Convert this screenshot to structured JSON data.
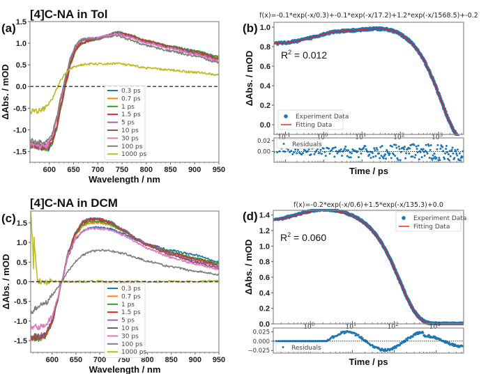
{
  "chart_data": [
    {
      "id": "a",
      "type": "line",
      "panel_label": "(a)",
      "title": "[4]C-NA in Tol",
      "xlabel": "Wavelength / nm",
      "ylabel": "ΔAbs. / mOD",
      "xlim": [
        560,
        950
      ],
      "ylim": [
        -1.75,
        1.5
      ],
      "xticks": [
        600,
        650,
        700,
        750,
        800,
        850,
        900,
        950
      ],
      "yticks": [
        -1.5,
        -1.0,
        -0.5,
        0.0,
        0.5,
        1.0,
        1.5
      ],
      "ytick_labels": [
        "-1.5",
        "-1.0",
        "-0.5",
        "0.0",
        "0.5",
        "1.0",
        "1.5"
      ],
      "zero_line": "dashed",
      "legend": {
        "placement": "lower-center"
      },
      "x": [
        565,
        580,
        595,
        605,
        615,
        625,
        635,
        645,
        655,
        665,
        680,
        700,
        720,
        740,
        760,
        800,
        850,
        900,
        950
      ],
      "series": [
        {
          "name": "0.3 ps",
          "color": "#1f77b4",
          "values": [
            -1.35,
            -1.4,
            -1.45,
            -1.35,
            -1.0,
            -0.45,
            0.1,
            0.55,
            0.85,
            0.98,
            1.05,
            1.1,
            1.18,
            1.25,
            1.2,
            1.05,
            0.92,
            0.82,
            0.68
          ]
        },
        {
          "name": "0.7 ps",
          "color": "#ff7f0e",
          "values": [
            -1.35,
            -1.4,
            -1.45,
            -1.35,
            -0.98,
            -0.43,
            0.1,
            0.55,
            0.85,
            0.98,
            1.05,
            1.1,
            1.18,
            1.25,
            1.2,
            1.05,
            0.92,
            0.82,
            0.67
          ]
        },
        {
          "name": "1 ps",
          "color": "#2ca02c",
          "values": [
            -1.35,
            -1.4,
            -1.45,
            -1.33,
            -0.97,
            -0.42,
            0.11,
            0.56,
            0.86,
            0.99,
            1.05,
            1.1,
            1.18,
            1.26,
            1.21,
            1.06,
            0.93,
            0.82,
            0.68
          ]
        },
        {
          "name": "1.5 ps",
          "color": "#d62728",
          "values": [
            -1.35,
            -1.4,
            -1.43,
            -1.3,
            -0.93,
            -0.38,
            0.13,
            0.58,
            0.87,
            0.99,
            1.05,
            1.1,
            1.18,
            1.25,
            1.2,
            1.05,
            0.92,
            0.8,
            0.65
          ]
        },
        {
          "name": "5 ps",
          "color": "#9467bd",
          "values": [
            -1.35,
            -1.38,
            -1.38,
            -1.22,
            -0.8,
            -0.28,
            0.22,
            0.65,
            0.92,
            1.05,
            1.1,
            1.12,
            1.18,
            1.24,
            1.18,
            1.03,
            0.9,
            0.78,
            0.62
          ]
        },
        {
          "name": "10 ps",
          "color": "#8c564b",
          "values": [
            -1.35,
            -1.38,
            -1.36,
            -1.2,
            -0.77,
            -0.25,
            0.24,
            0.67,
            0.93,
            1.06,
            1.1,
            1.12,
            1.18,
            1.23,
            1.18,
            1.03,
            0.9,
            0.77,
            0.61
          ]
        },
        {
          "name": "30 ps",
          "color": "#e377c2",
          "values": [
            -1.35,
            -1.38,
            -1.35,
            -1.18,
            -0.75,
            -0.22,
            0.27,
            0.7,
            0.95,
            1.08,
            1.12,
            1.12,
            1.18,
            1.22,
            1.16,
            1.01,
            0.88,
            0.75,
            0.59
          ]
        },
        {
          "name": "100 ps",
          "color": "#7f7f7f",
          "values": [
            -1.25,
            -1.3,
            -1.3,
            -1.12,
            -0.7,
            -0.18,
            0.3,
            0.72,
            0.97,
            1.08,
            1.1,
            1.1,
            1.15,
            1.18,
            1.1,
            0.95,
            0.82,
            0.7,
            0.55
          ]
        },
        {
          "name": "1000 ps",
          "color": "#bcbd22",
          "values": [
            -0.55,
            -0.55,
            -0.45,
            -0.3,
            -0.05,
            0.18,
            0.32,
            0.42,
            0.47,
            0.5,
            0.52,
            0.52,
            0.52,
            0.54,
            0.5,
            0.43,
            0.38,
            0.33,
            0.27
          ]
        }
      ]
    },
    {
      "id": "b",
      "type": "scatter",
      "panel_label": "(b)",
      "title": "f(x)=-0.1*exp(-x/0.3)+-0.1*exp(-x/17.2)+1.2*exp(-x/1568.5)+-0.2",
      "fit": {
        "terms": [
          {
            "A": -0.1,
            "tau": 0.3
          },
          {
            "A": -0.1,
            "tau": 17.2
          },
          {
            "A": 1.2,
            "tau": 1568.5
          }
        ],
        "offset": -0.2
      },
      "r2_label": "R",
      "r2_sup": "2",
      "r2_value": " = 0.012",
      "xlabel": "Time / ps",
      "ylabel": "ΔAbs. / mOD",
      "xscale": "log",
      "xlim": [
        0.05,
        4500
      ],
      "ylim": [
        -0.1,
        1.05
      ],
      "xticks": [
        "10^-1",
        "10^0",
        "10^1",
        "10^2",
        "10^3"
      ],
      "yticks": [
        0.0,
        0.2,
        0.4,
        0.6,
        0.8,
        1.0
      ],
      "ytick_labels": [
        "0.0",
        "0.2",
        "0.4",
        "0.6",
        "0.8",
        "1.0"
      ],
      "legend": {
        "placement": "lower-left",
        "entries": [
          {
            "name": "Experiment Data",
            "color": "#1f77b4",
            "marker": "dot"
          },
          {
            "name": "Fitting Data",
            "color": "#ff2020",
            "marker": "line"
          }
        ]
      },
      "residuals": {
        "ylim": [
          -0.02,
          0.025
        ],
        "yticks": [
          0.0,
          0.02
        ],
        "ytick_labels": [
          "0.00",
          "0.02"
        ],
        "legend": "Residuals",
        "amplitude": 0.012
      }
    },
    {
      "id": "c",
      "type": "line",
      "panel_label": "(c)",
      "title": "[4]C-NA in DCM",
      "xlabel": "Wavelength / nm",
      "ylabel": "ΔAbs. / mOD",
      "xlim": [
        555,
        950
      ],
      "ylim": [
        -1.8,
        1.8
      ],
      "xticks": [
        600,
        650,
        700,
        750,
        800,
        850,
        900,
        950
      ],
      "yticks": [
        -1.5,
        -1.0,
        -0.5,
        0.0,
        0.5,
        1.0,
        1.5
      ],
      "ytick_labels": [
        "-1.5",
        "-1.0",
        "-0.5",
        "0.0",
        "0.5",
        "1.0",
        "1.5"
      ],
      "zero_line": "dashed",
      "legend": {
        "placement": "lower-center"
      },
      "x": [
        557,
        570,
        585,
        600,
        610,
        620,
        635,
        650,
        665,
        680,
        700,
        720,
        750,
        780,
        800,
        850,
        900,
        950
      ],
      "series": [
        {
          "name": "0.3 ps",
          "color": "#1f77b4",
          "values": [
            -1.45,
            -1.45,
            -1.4,
            -1.05,
            -0.55,
            0.0,
            0.7,
            1.1,
            1.3,
            1.38,
            1.38,
            1.35,
            1.22,
            1.05,
            0.95,
            0.8,
            0.68,
            0.5
          ]
        },
        {
          "name": "0.7 ps",
          "color": "#ff7f0e",
          "values": [
            -1.45,
            -1.45,
            -1.4,
            -1.05,
            -0.55,
            0.0,
            0.75,
            1.2,
            1.42,
            1.5,
            1.5,
            1.45,
            1.28,
            1.07,
            0.95,
            0.75,
            0.6,
            0.45
          ]
        },
        {
          "name": "1 ps",
          "color": "#2ca02c",
          "values": [
            -1.45,
            -1.45,
            -1.38,
            -1.05,
            -0.55,
            0.0,
            0.77,
            1.23,
            1.46,
            1.54,
            1.54,
            1.48,
            1.3,
            1.08,
            0.95,
            0.75,
            0.6,
            0.46
          ]
        },
        {
          "name": "1.5 ps",
          "color": "#d62728",
          "values": [
            -1.45,
            -1.42,
            -1.38,
            -1.05,
            -0.55,
            0.0,
            0.78,
            1.25,
            1.5,
            1.58,
            1.58,
            1.52,
            1.32,
            1.08,
            0.95,
            0.73,
            0.57,
            0.42
          ]
        },
        {
          "name": "5 ps",
          "color": "#9467bd",
          "values": [
            -1.4,
            -1.4,
            -1.35,
            -1.02,
            -0.53,
            0.0,
            0.8,
            1.28,
            1.54,
            1.62,
            1.6,
            1.54,
            1.32,
            1.08,
            0.93,
            0.7,
            0.54,
            0.38
          ]
        },
        {
          "name": "10 ps",
          "color": "#8c564b",
          "values": [
            -1.4,
            -1.4,
            -1.35,
            -1.02,
            -0.53,
            0.0,
            0.8,
            1.28,
            1.53,
            1.6,
            1.6,
            1.53,
            1.3,
            1.06,
            0.92,
            0.68,
            0.5,
            0.35
          ]
        },
        {
          "name": "30 ps",
          "color": "#e377c2",
          "values": [
            -1.15,
            -1.15,
            -1.1,
            -0.88,
            -0.48,
            0.0,
            0.72,
            1.12,
            1.3,
            1.35,
            1.35,
            1.32,
            1.18,
            0.98,
            0.85,
            0.62,
            0.45,
            0.32
          ]
        },
        {
          "name": "100 ps",
          "color": "#7f7f7f",
          "values": [
            -0.75,
            -0.65,
            -0.55,
            -0.35,
            -0.18,
            0.0,
            0.3,
            0.52,
            0.68,
            0.77,
            0.8,
            0.79,
            0.72,
            0.6,
            0.52,
            0.38,
            0.27,
            0.18
          ]
        },
        {
          "name": "1000 ps",
          "color": "#bcbd22",
          "values": [
            1.8,
            0.02,
            -0.02,
            0.02,
            0.0,
            0.0,
            0.0,
            0.0,
            0.0,
            0.01,
            0.01,
            0.0,
            0.0,
            0.01,
            0.0,
            0.01,
            0.0,
            0.02
          ]
        }
      ]
    },
    {
      "id": "d",
      "type": "scatter",
      "panel_label": "(d)",
      "title": "f(x)=-0.2*exp(-x/0.6)+1.5*exp(-x/135.3)+0.0",
      "fit": {
        "terms": [
          {
            "A": -0.2,
            "tau": 0.6
          },
          {
            "A": 1.5,
            "tau": 135.3
          }
        ],
        "offset": 0.0
      },
      "r2_label": "R",
      "r2_sup": "2",
      "r2_value": " = 0.060",
      "xlabel": "Time / ps",
      "ylabel": "ΔAbs. / mOD",
      "xscale": "log",
      "xlim": [
        0.13,
        4500
      ],
      "ylim": [
        0.0,
        1.46
      ],
      "xticks": [
        "10^0",
        "10^1",
        "10^2",
        "10^3"
      ],
      "yticks": [
        0.0,
        0.2,
        0.4,
        0.6,
        0.8,
        1.0,
        1.2,
        1.4
      ],
      "ytick_labels": [
        "0.0",
        "0.2",
        "0.4",
        "0.6",
        "0.8",
        "1.0",
        "1.2",
        "1.4"
      ],
      "legend": {
        "placement": "upper-right",
        "entries": [
          {
            "name": "Experiment Data",
            "color": "#1f77b4",
            "marker": "dot"
          },
          {
            "name": "Fitting Data",
            "color": "#ff2020",
            "marker": "line"
          }
        ]
      },
      "residuals": {
        "ylim": [
          -0.032,
          0.035
        ],
        "yticks": [
          -0.025,
          0.0,
          0.025
        ],
        "ytick_labels": [
          "−0.025",
          "0.000",
          "0.025"
        ],
        "legend": "Residuals",
        "amplitude": 0.03
      }
    }
  ]
}
